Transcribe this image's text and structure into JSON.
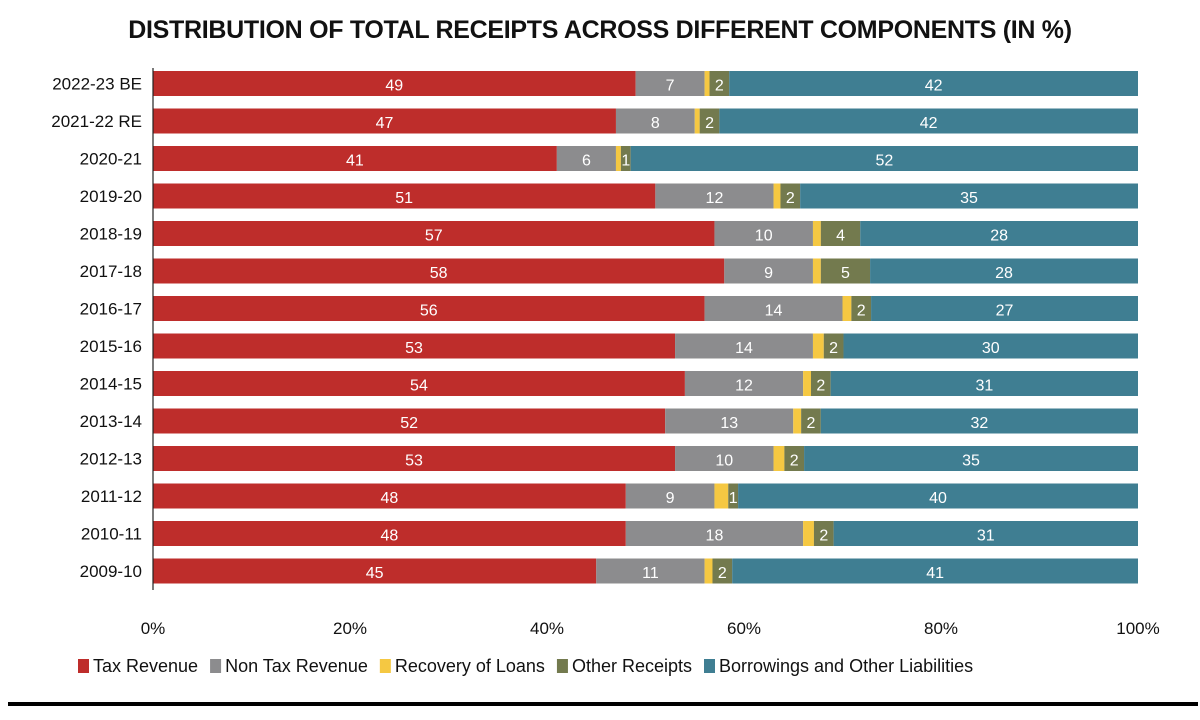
{
  "chart_data": {
    "type": "bar",
    "orientation": "horizontal",
    "stacked": true,
    "title": "DISTRIBUTION OF TOTAL RECEIPTS ACROSS DIFFERENT COMPONENTS (IN %)",
    "xlabel": "",
    "ylabel": "",
    "xlim": [
      0,
      100
    ],
    "x_ticks": [
      "0%",
      "20%",
      "40%",
      "60%",
      "80%",
      "100%"
    ],
    "grid": false,
    "legend_position": "bottom",
    "categories": [
      "2022-23 BE",
      "2021-22 RE",
      "2020-21",
      "2019-20",
      "2018-19",
      "2017-18",
      "2016-17",
      "2015-16",
      "2014-15",
      "2013-14",
      "2012-13",
      "2011-12",
      "2010-11",
      "2009-10"
    ],
    "series": [
      {
        "name": "Tax Revenue",
        "color": "#BE2D2B",
        "labeled": true,
        "values": [
          49,
          47,
          41,
          51,
          57,
          58,
          56,
          53,
          54,
          52,
          53,
          48,
          48,
          45
        ]
      },
      {
        "name": "Non Tax Revenue",
        "color": "#8C8C8E",
        "labeled": true,
        "values": [
          7,
          8,
          6,
          12,
          10,
          9,
          14,
          14,
          12,
          13,
          10,
          9,
          18,
          11
        ]
      },
      {
        "name": "Recovery of Loans",
        "color": "#F5C842",
        "labeled": false,
        "values": [
          0.5,
          0.5,
          0.5,
          0.7,
          0.8,
          0.8,
          0.9,
          1.1,
          0.8,
          0.8,
          1.1,
          1.4,
          1.1,
          0.8
        ]
      },
      {
        "name": "Other Receipts",
        "color": "#737A4E",
        "labeled": true,
        "values": [
          2,
          2,
          1,
          2,
          4,
          5,
          2,
          2,
          2,
          2,
          2,
          1,
          2,
          2
        ]
      },
      {
        "name": "Borrowings and Other Liabilities",
        "color": "#3F7E92",
        "labeled": true,
        "values": [
          42,
          42,
          52,
          35,
          28,
          28,
          27,
          30,
          31,
          32,
          35,
          40,
          31,
          41
        ]
      }
    ]
  }
}
